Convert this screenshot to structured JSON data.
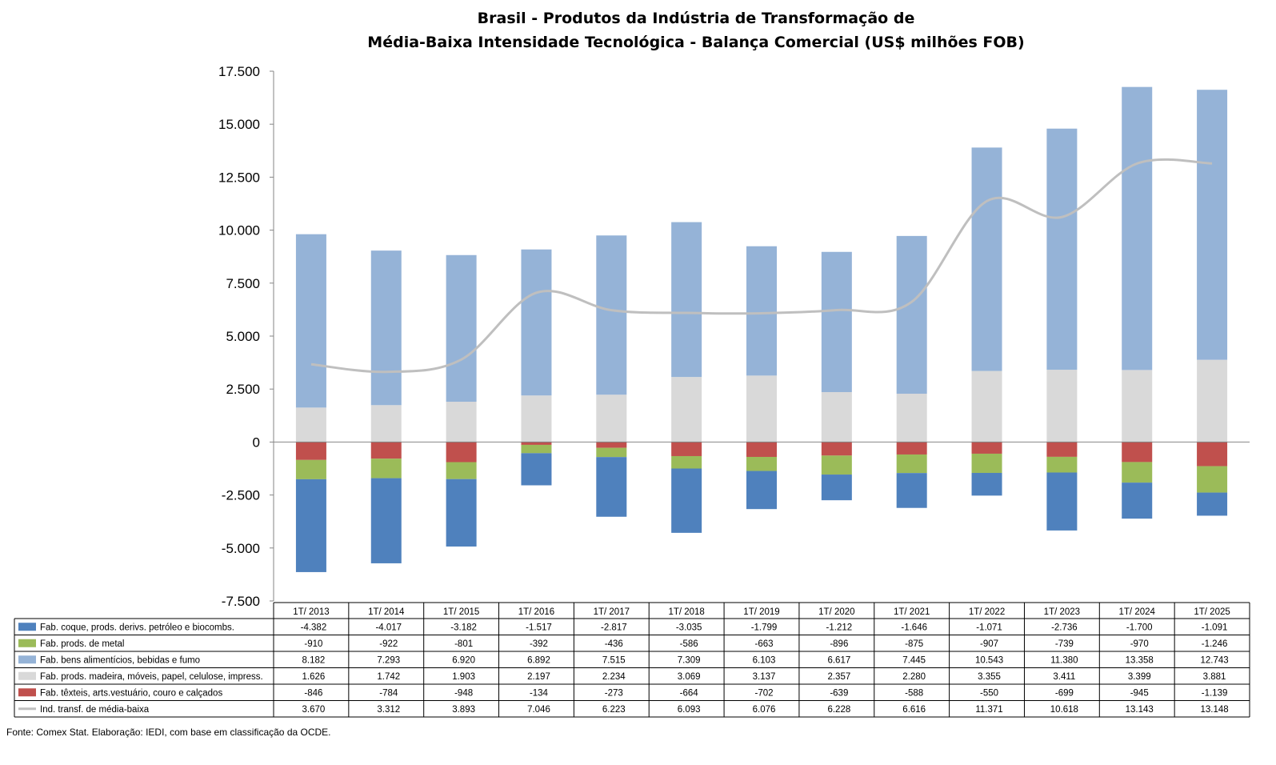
{
  "chart_data": {
    "type": "bar",
    "stacked": true,
    "title_line1": "Brasil - Produtos da Indústria de Transformação de",
    "title_line2": "Média-Baixa Intensidade Tecnológica - Balança Comercial (US$ milhões FOB)",
    "categories": [
      "1T/ 2013",
      "1T/ 2014",
      "1T/ 2015",
      "1T/ 2016",
      "1T/ 2017",
      "1T/ 2018",
      "1T/ 2019",
      "1T/ 2020",
      "1T/ 2021",
      "1T/ 2022",
      "1T/ 2023",
      "1T/ 2024",
      "1T/ 2025"
    ],
    "ylim": [
      -7500,
      17500
    ],
    "yticks": [
      17500,
      15000,
      12500,
      10000,
      7500,
      5000,
      2500,
      0,
      -2500,
      -5000,
      -7500
    ],
    "ytick_labels": [
      "17.500",
      "15.000",
      "12.500",
      "10.000",
      "7.500",
      "5.000",
      "2.500",
      "0",
      "-2.500",
      "-5.000",
      "-7.500"
    ],
    "grid": false,
    "legend": "data-table-below",
    "series": [
      {
        "name": "Fab. coque, prods. derivs. petróleo e biocombs.",
        "type": "bar",
        "color": "#4f81bd",
        "values": [
          -4382,
          -4017,
          -3182,
          -1517,
          -2817,
          -3035,
          -1799,
          -1212,
          -1646,
          -1071,
          -2736,
          -1700,
          -1091
        ],
        "labels": [
          "-4.382",
          "-4.017",
          "-3.182",
          "-1.517",
          "-2.817",
          "-3.035",
          "-1.799",
          "-1.212",
          "-1.646",
          "-1.071",
          "-2.736",
          "-1.700",
          "-1.091"
        ]
      },
      {
        "name": "Fab. prods. de metal",
        "type": "bar",
        "color": "#9bbb59",
        "values": [
          -910,
          -922,
          -801,
          -392,
          -436,
          -586,
          -663,
          -896,
          -875,
          -907,
          -739,
          -970,
          -1246
        ],
        "labels": [
          "-910",
          "-922",
          "-801",
          "-392",
          "-436",
          "-586",
          "-663",
          "-896",
          "-875",
          "-907",
          "-739",
          "-970",
          "-1.246"
        ]
      },
      {
        "name": "Fab. bens alimentícios, bebidas e fumo",
        "type": "bar",
        "color": "#95b3d7",
        "values": [
          8182,
          7293,
          6920,
          6892,
          7515,
          7309,
          6103,
          6617,
          7445,
          10543,
          11380,
          13358,
          12743
        ],
        "labels": [
          "8.182",
          "7.293",
          "6.920",
          "6.892",
          "7.515",
          "7.309",
          "6.103",
          "6.617",
          "7.445",
          "10.543",
          "11.380",
          "13.358",
          "12.743"
        ]
      },
      {
        "name": "Fab. prods. madeira, móveis, papel, celulose, impress.",
        "type": "bar",
        "color": "#d9d9d9",
        "values": [
          1626,
          1742,
          1903,
          2197,
          2234,
          3069,
          3137,
          2357,
          2280,
          3355,
          3411,
          3399,
          3881
        ],
        "labels": [
          "1.626",
          "1.742",
          "1.903",
          "2.197",
          "2.234",
          "3.069",
          "3.137",
          "2.357",
          "2.280",
          "3.355",
          "3.411",
          "3.399",
          "3.881"
        ]
      },
      {
        "name": "Fab. têxteis, arts.vestuário, couro e calçados",
        "type": "bar",
        "color": "#c0504d",
        "values": [
          -846,
          -784,
          -948,
          -134,
          -273,
          -664,
          -702,
          -639,
          -588,
          -550,
          -699,
          -945,
          -1139
        ],
        "labels": [
          "-846",
          "-784",
          "-948",
          "-134",
          "-273",
          "-664",
          "-702",
          "-639",
          "-588",
          "-550",
          "-699",
          "-945",
          "-1.139"
        ]
      },
      {
        "name": "Ind. transf. de média-baixa",
        "type": "line",
        "color": "#bfbfbf",
        "values": [
          3670,
          3312,
          3893,
          7046,
          6223,
          6093,
          6076,
          6228,
          6616,
          11371,
          10618,
          13143,
          13148
        ],
        "labels": [
          "3.670",
          "3.312",
          "3.893",
          "7.046",
          "6.223",
          "6.093",
          "6.076",
          "6.228",
          "6.616",
          "11.371",
          "10.618",
          "13.143",
          "13.148"
        ]
      }
    ]
  },
  "source": "Fonte:  Comex Stat. Elaboração: IEDI, com base em classificação da OCDE."
}
